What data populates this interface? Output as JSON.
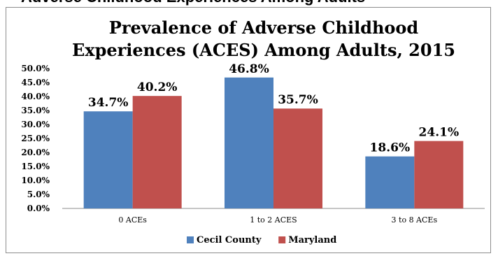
{
  "header_fragment": "Adverse Childhood Experiences Among Adults",
  "chart_data": {
    "type": "bar",
    "title_lines": [
      "Prevalence of Adverse Childhood",
      "Experiences (ACES) Among Adults, 2015"
    ],
    "categories": [
      "0 ACEs",
      "1 to 2 ACES",
      "3 to 8 ACEs"
    ],
    "series": [
      {
        "name": "Cecil County",
        "values": [
          34.7,
          46.8,
          18.6
        ],
        "labels": [
          "34.7%",
          "46.8%",
          "18.6%"
        ],
        "color": "#4f81bd"
      },
      {
        "name": "Maryland",
        "values": [
          40.2,
          35.7,
          24.1
        ],
        "labels": [
          "40.2%",
          "35.7%",
          "24.1%"
        ],
        "color": "#c0504d"
      }
    ],
    "yticks": [
      "0.0%",
      "5.0%",
      "10.0%",
      "15.0%",
      "20.0%",
      "25.0%",
      "30.0%",
      "35.0%",
      "40.0%",
      "45.0%",
      "50.0%"
    ],
    "ylim": [
      0,
      50
    ],
    "legend_position": "bottom",
    "grid": false
  }
}
